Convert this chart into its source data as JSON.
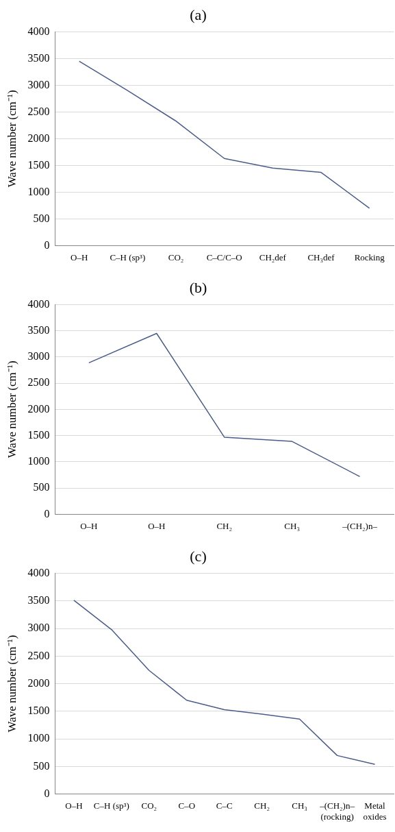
{
  "chart_data": [
    {
      "type": "line",
      "title": "(a)",
      "ylabel": "Wave number (cm⁻¹)",
      "categories": [
        "O–H",
        "C–H (sp³)",
        "CO₂",
        "C–C/C–O",
        "CH₂def",
        "CH₃def",
        "Rocking"
      ],
      "series": [
        {
          "color": "#4a5b8c",
          "values": [
            3450,
            2900,
            2330,
            1630,
            1450,
            1370,
            700
          ]
        }
      ],
      "ylim": [
        0,
        4000
      ],
      "yticks": [
        0,
        500,
        1000,
        1500,
        2000,
        2500,
        3000,
        3500,
        4000
      ],
      "grid": "y",
      "legend": false,
      "marker": "none",
      "line_style": "solid"
    },
    {
      "type": "line",
      "title": "(b)",
      "ylabel": "Wave number (cm⁻¹)",
      "categories": [
        "O–H",
        "O–H",
        "CH₂",
        "CH₃",
        "–(CH₂)n–"
      ],
      "series": [
        {
          "color": "#4a5b8c",
          "values": [
            2890,
            3450,
            1470,
            1390,
            720
          ]
        }
      ],
      "ylim": [
        0,
        4000
      ],
      "yticks": [
        0,
        500,
        1000,
        1500,
        2000,
        2500,
        3000,
        3500,
        4000
      ],
      "grid": "y",
      "legend": false,
      "marker": "none",
      "line_style": "solid"
    },
    {
      "type": "line",
      "title": "(c)",
      "ylabel": "Wave number (cm⁻¹)",
      "categories": [
        "O–H",
        "C–H (sp³)",
        "CO₂",
        "C–O",
        "C–C",
        "CH₂",
        "CH₃",
        "–(CH₂)n– (rocking)",
        "Metal oxides"
      ],
      "series": [
        {
          "color": "#4a5b8c",
          "values": [
            3510,
            2980,
            2240,
            1700,
            1530,
            1450,
            1360,
            700,
            540
          ]
        }
      ],
      "ylim": [
        0,
        4000
      ],
      "yticks": [
        0,
        500,
        1000,
        1500,
        2000,
        2500,
        3000,
        3500,
        4000
      ],
      "grid": "y",
      "legend": false,
      "marker": "none",
      "line_style": "solid"
    }
  ]
}
